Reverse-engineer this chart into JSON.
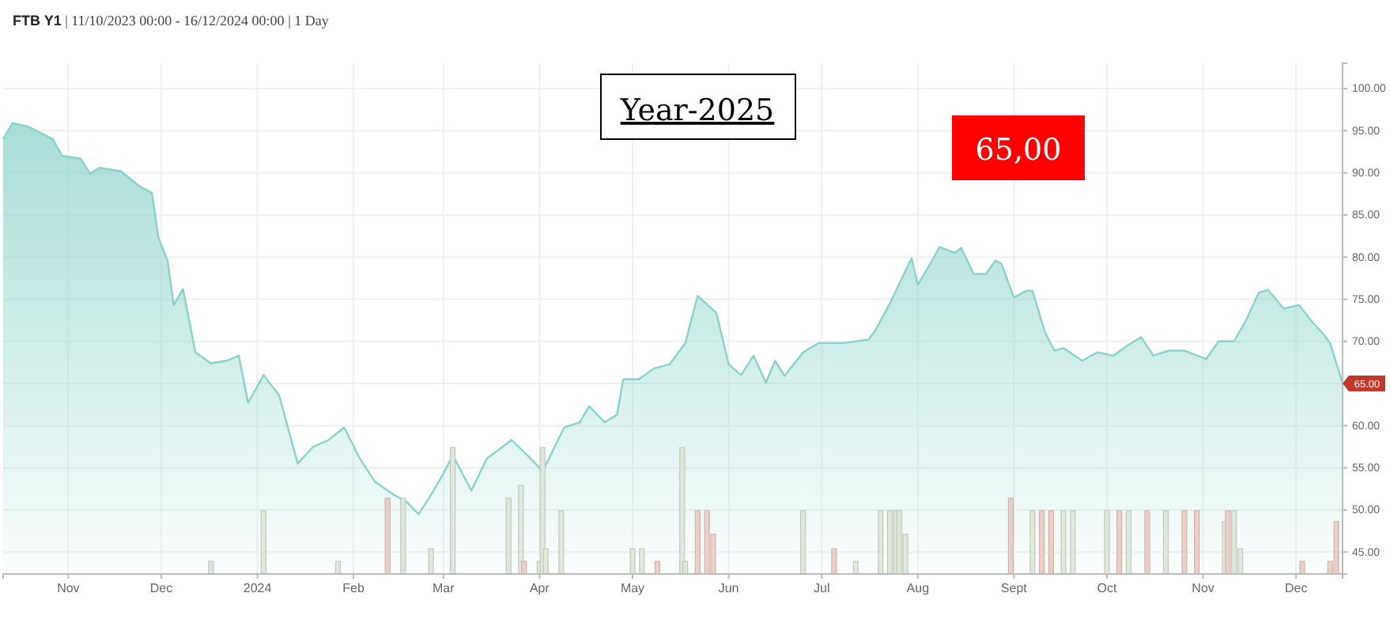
{
  "chart_data": {
    "type": "area",
    "title": "FTB Y1 | 11/10/2023 00:00 - 16/12/2024 00:00 | 1 Day",
    "xlim": [
      "2023-10-11",
      "2024-12-16"
    ],
    "xticks": [
      {
        "value": "2023-11-01",
        "label": "Nov"
      },
      {
        "value": "2023-12-01",
        "label": "Dec"
      },
      {
        "value": "2024-01-01",
        "label": "2024"
      },
      {
        "value": "2024-02-01",
        "label": "Feb"
      },
      {
        "value": "2024-03-01",
        "label": "Mar"
      },
      {
        "value": "2024-04-01",
        "label": "Apr"
      },
      {
        "value": "2024-05-01",
        "label": "May"
      },
      {
        "value": "2024-06-01",
        "label": "Jun"
      },
      {
        "value": "2024-07-01",
        "label": "Jul"
      },
      {
        "value": "2024-08-01",
        "label": "Aug"
      },
      {
        "value": "2024-09-01",
        "label": "Sept"
      },
      {
        "value": "2024-10-01",
        "label": "Oct"
      },
      {
        "value": "2024-11-01",
        "label": "Nov"
      },
      {
        "value": "2024-12-01",
        "label": "Dec"
      }
    ],
    "ylim": [
      42.4,
      103
    ],
    "yticks": [
      {
        "value": 45,
        "label": "45.00"
      },
      {
        "value": 50,
        "label": "50.00"
      },
      {
        "value": 55,
        "label": "55.00"
      },
      {
        "value": 60,
        "label": "60.00"
      },
      {
        "value": 65,
        "label": null
      },
      {
        "value": 70,
        "label": "70.00"
      },
      {
        "value": 75,
        "label": "75.00"
      },
      {
        "value": 80,
        "label": "80.00"
      },
      {
        "value": 85,
        "label": "85.00"
      },
      {
        "value": 90,
        "label": "90.00"
      },
      {
        "value": 95,
        "label": "95.00"
      },
      {
        "value": 100,
        "label": "100.00"
      }
    ],
    "grid": true,
    "series": [
      {
        "color": "#8ad2c9",
        "x": [
          "2023-10-11",
          "2023-10-14",
          "2023-10-19",
          "2023-10-27",
          "2023-10-30",
          "2023-11-05",
          "2023-11-08",
          "2023-11-11",
          "2023-11-18",
          "2023-11-24",
          "2023-11-28",
          "2023-11-30",
          "2023-12-03",
          "2023-12-05",
          "2023-12-08",
          "2023-12-12",
          "2023-12-17",
          "2023-12-22",
          "2023-12-26",
          "2023-12-29",
          "2024-01-03",
          "2024-01-08",
          "2024-01-14",
          "2024-01-19",
          "2024-01-24",
          "2024-01-29",
          "2024-02-03",
          "2024-02-08",
          "2024-02-14",
          "2024-02-18",
          "2024-02-22",
          "2024-02-26",
          "2024-03-01",
          "2024-03-04",
          "2024-03-10",
          "2024-03-15",
          "2024-03-23",
          "2024-03-28",
          "2024-04-02",
          "2024-04-09",
          "2024-04-14",
          "2024-04-17",
          "2024-04-22",
          "2024-04-26",
          "2024-04-28",
          "2024-05-03",
          "2024-05-08",
          "2024-05-13",
          "2024-05-18",
          "2024-05-22",
          "2024-05-28",
          "2024-06-01",
          "2024-06-05",
          "2024-06-09",
          "2024-06-13",
          "2024-06-16",
          "2024-06-19",
          "2024-06-25",
          "2024-06-30",
          "2024-07-08",
          "2024-07-16",
          "2024-07-18",
          "2024-07-23",
          "2024-07-30",
          "2024-08-01",
          "2024-08-05",
          "2024-08-08",
          "2024-08-13",
          "2024-08-15",
          "2024-08-19",
          "2024-08-23",
          "2024-08-26",
          "2024-08-28",
          "2024-09-01",
          "2024-09-05",
          "2024-09-07",
          "2024-09-11",
          "2024-09-14",
          "2024-09-17",
          "2024-09-23",
          "2024-09-28",
          "2024-10-03",
          "2024-10-08",
          "2024-10-12",
          "2024-10-16",
          "2024-10-21",
          "2024-10-26",
          "2024-11-02",
          "2024-11-06",
          "2024-11-11",
          "2024-11-15",
          "2024-11-19",
          "2024-11-22",
          "2024-11-27",
          "2024-12-02",
          "2024-12-06",
          "2024-12-10",
          "2024-12-12",
          "2024-12-16"
        ],
        "values": [
          94,
          95.9,
          95.5,
          94,
          92,
          91.7,
          89.9,
          90.6,
          90.2,
          88.4,
          87.6,
          82.4,
          79.6,
          74.3,
          76.2,
          68.7,
          67.4,
          67.7,
          68.3,
          62.7,
          66,
          63.6,
          55.5,
          57.5,
          58.3,
          59.8,
          56.1,
          53.3,
          51.8,
          51,
          49.5,
          51.8,
          54.3,
          56.5,
          52.3,
          56.1,
          58.3,
          56.5,
          54.6,
          59.8,
          60.4,
          62.3,
          60.4,
          61.3,
          65.5,
          65.5,
          66.8,
          67.3,
          69.8,
          75.4,
          73.4,
          67.3,
          66,
          68.3,
          65.1,
          67.7,
          65.9,
          68.7,
          69.8,
          69.8,
          70.2,
          71.1,
          74.5,
          79.9,
          76.7,
          79.2,
          81.2,
          80.5,
          81.1,
          78,
          78,
          79.6,
          79.2,
          75.2,
          76,
          76,
          71.1,
          68.9,
          69.2,
          67.7,
          68.7,
          68.3,
          69.6,
          70.5,
          68.3,
          68.9,
          68.9,
          67.9,
          70,
          70,
          72.6,
          75.8,
          76.1,
          73.9,
          74.3,
          72.4,
          70.8,
          69.8,
          65
        ]
      },
      {
        "type": "bar",
        "x": [
          "2023-12-17",
          "2024-01-03",
          "2024-01-27",
          "2024-02-12",
          "2024-02-17",
          "2024-02-26",
          "2024-03-04",
          "2024-03-22",
          "2024-03-26",
          "2024-03-27",
          "2024-04-01",
          "2024-04-02",
          "2024-04-03",
          "2024-04-08",
          "2024-05-01",
          "2024-05-04",
          "2024-05-09",
          "2024-05-17",
          "2024-05-18",
          "2024-05-22",
          "2024-05-25",
          "2024-05-27",
          "2024-06-25",
          "2024-07-05",
          "2024-07-12",
          "2024-07-20",
          "2024-07-23",
          "2024-07-25",
          "2024-07-26",
          "2024-07-28",
          "2024-08-31",
          "2024-09-07",
          "2024-09-10",
          "2024-09-13",
          "2024-09-17",
          "2024-09-20",
          "2024-10-01",
          "2024-10-05",
          "2024-10-08",
          "2024-10-14",
          "2024-10-20",
          "2024-10-26",
          "2024-10-30",
          "2024-11-08",
          "2024-11-09",
          "2024-11-11",
          "2024-11-13",
          "2024-12-03",
          "2024-12-12",
          "2024-12-14"
        ],
        "values": [
          43.9,
          49.9,
          43.9,
          51.4,
          51.4,
          45.4,
          57.4,
          51.4,
          52.9,
          43.9,
          43.9,
          57.4,
          45.4,
          49.9,
          45.4,
          45.4,
          43.9,
          57.4,
          43.9,
          49.9,
          49.9,
          47.1,
          49.9,
          45.4,
          43.9,
          49.9,
          49.9,
          49.9,
          49.9,
          47.1,
          51.4,
          49.9,
          49.9,
          49.9,
          49.9,
          49.9,
          49.9,
          49.9,
          49.9,
          49.9,
          49.9,
          49.9,
          49.9,
          48.6,
          49.9,
          49.9,
          45.4,
          43.9,
          43.9,
          48.6
        ],
        "colors": [
          "#dfe8da",
          "#dfe8da",
          "#dfe8da",
          "#ecd0c8",
          "#dfe8da",
          "#dfe8da",
          "#dfe8da",
          "#dfe8da",
          "#dfe8da",
          "#ecd0c8",
          "#dfe8da",
          "#dfe8da",
          "#dfe8da",
          "#dfe8da",
          "#dfe8da",
          "#dfe8da",
          "#ecd0c8",
          "#dfe8da",
          "#dfe8da",
          "#ecd0c8",
          "#ecd0c8",
          "#ecd0c8",
          "#dfe8da",
          "#ecd0c8",
          "#dfe8da",
          "#dfe8da",
          "#dfe8da",
          "#dfe8da",
          "#dfe8da",
          "#dfe8da",
          "#ecd0c8",
          "#dfe8da",
          "#ecd0c8",
          "#ecd0c8",
          "#dfe8da",
          "#dfe8da",
          "#dfe8da",
          "#ecd0c8",
          "#dfe8da",
          "#ecd0c8",
          "#dfe8da",
          "#ecd0c8",
          "#ecd0c8",
          "#dfe8da",
          "#ecd0c8",
          "#dfe8da",
          "#dfe8da",
          "#ecd0c8",
          "#ecd0c8",
          "#ecd0c8"
        ]
      }
    ],
    "annotations": [
      "Year-2025",
      "65,00",
      {
        "text": "65.00",
        "x": "2024-12-16",
        "y": 65
      }
    ]
  }
}
